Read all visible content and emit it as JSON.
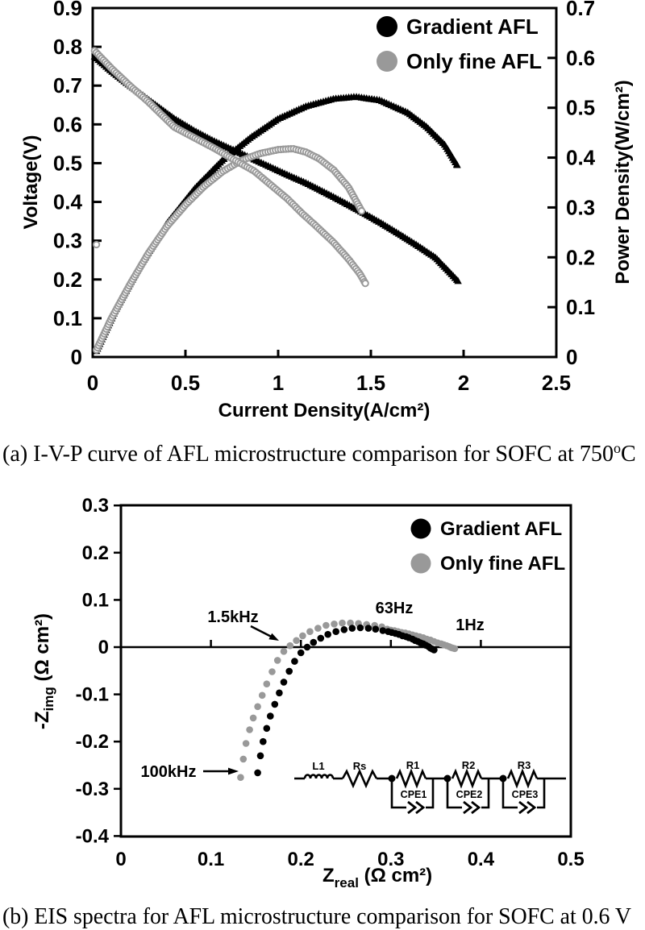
{
  "captions": {
    "a": {
      "pre": "(a) I-V-P curve of AFL microstructure comparison for SOFC at 750",
      "sup": "o",
      "post": "C"
    },
    "b": "(b) EIS spectra for AFL microstructure comparison for SOFC at 0.6 V"
  },
  "colors": {
    "black": "#000000",
    "gray": "#999999"
  },
  "chart_data": [
    {
      "id": "ivp",
      "type": "scatter",
      "title": "",
      "xlabel": "Current Density(A/cm²)",
      "ylabel": "Voltage(V)",
      "y2label": "Power Density(W/cm²)",
      "xlim": [
        0,
        2.5
      ],
      "ylim": [
        0,
        0.9
      ],
      "y2lim": [
        0,
        0.7
      ],
      "grid": false,
      "legend_position": "top-right-inside",
      "xticks": {
        "values": [
          0,
          0.5,
          1,
          1.5,
          2,
          2.5
        ],
        "labels": [
          "0",
          "0.5",
          "1",
          "1.5",
          "2",
          "2.5"
        ]
      },
      "yticks": {
        "values": [
          0,
          0.1,
          0.2,
          0.3,
          0.4,
          0.5,
          0.6,
          0.7,
          0.8,
          0.9
        ],
        "labels": [
          "0",
          "0.1",
          "0.2",
          "0.3",
          "0.4",
          "0.5",
          "0.6",
          "0.7",
          "0.8",
          "0.9"
        ]
      },
      "y2ticks": {
        "values": [
          0,
          0.1,
          0.2,
          0.3,
          0.4,
          0.5,
          0.6,
          0.7
        ],
        "labels": [
          "0",
          "0.1",
          "0.2",
          "0.3",
          "0.4",
          "0.5",
          "0.6",
          "0.7"
        ]
      },
      "legend": [
        {
          "label": "Gradient AFL",
          "color": "#000000"
        },
        {
          "label": "Only fine AFL",
          "color": "#999999"
        }
      ],
      "series": [
        {
          "name": "Gradient AFL power density",
          "axis": "y2",
          "marker": "triangle",
          "color": "#000000",
          "dense": true,
          "points": [
            [
              0.02,
              0.012
            ],
            [
              0.12,
              0.092
            ],
            [
              0.25,
              0.18
            ],
            [
              0.4,
              0.268
            ],
            [
              0.55,
              0.338
            ],
            [
              0.7,
              0.395
            ],
            [
              0.85,
              0.44
            ],
            [
              1.0,
              0.478
            ],
            [
              1.15,
              0.503
            ],
            [
              1.3,
              0.518
            ],
            [
              1.42,
              0.522
            ],
            [
              1.55,
              0.515
            ],
            [
              1.7,
              0.49
            ],
            [
              1.8,
              0.462
            ],
            [
              1.9,
              0.425
            ],
            [
              1.965,
              0.385
            ]
          ]
        },
        {
          "name": "Gradient AFL voltage",
          "axis": "y",
          "marker": "triangle",
          "color": "#000000",
          "dense": true,
          "points": [
            [
              0.01,
              0.775
            ],
            [
              0.1,
              0.737
            ],
            [
              0.2,
              0.7
            ],
            [
              0.3,
              0.664
            ],
            [
              0.44,
              0.615
            ],
            [
              0.55,
              0.583
            ],
            [
              0.65,
              0.558
            ],
            [
              0.75,
              0.536
            ],
            [
              0.85,
              0.514
            ],
            [
              0.95,
              0.492
            ],
            [
              1.05,
              0.47
            ],
            [
              1.15,
              0.449
            ],
            [
              1.25,
              0.425
            ],
            [
              1.35,
              0.4
            ],
            [
              1.45,
              0.374
            ],
            [
              1.55,
              0.347
            ],
            [
              1.65,
              0.318
            ],
            [
              1.75,
              0.288
            ],
            [
              1.85,
              0.256
            ],
            [
              1.97,
              0.196
            ]
          ]
        },
        {
          "name": "Only fine AFL power density",
          "axis": "y2",
          "marker": "open-circle",
          "color": "#999999",
          "dense": true,
          "points": [
            [
              0.02,
              0.014
            ],
            [
              0.1,
              0.077
            ],
            [
              0.2,
              0.145
            ],
            [
              0.3,
              0.208
            ],
            [
              0.4,
              0.262
            ],
            [
              0.5,
              0.305
            ],
            [
              0.6,
              0.342
            ],
            [
              0.7,
              0.372
            ],
            [
              0.8,
              0.394
            ],
            [
              0.9,
              0.408
            ],
            [
              1.0,
              0.416
            ],
            [
              1.08,
              0.418
            ],
            [
              1.15,
              0.411
            ],
            [
              1.22,
              0.398
            ],
            [
              1.3,
              0.375
            ],
            [
              1.38,
              0.34
            ],
            [
              1.45,
              0.293
            ]
          ]
        },
        {
          "name": "Only fine AFL voltage",
          "axis": "y",
          "marker": "open-circle",
          "color": "#999999",
          "dense": true,
          "points": [
            [
              0.01,
              0.79
            ],
            [
              0.1,
              0.745
            ],
            [
              0.2,
              0.7
            ],
            [
              0.3,
              0.658
            ],
            [
              0.44,
              0.593
            ],
            [
              0.55,
              0.565
            ],
            [
              0.65,
              0.54
            ],
            [
              0.75,
              0.512
            ],
            [
              0.87,
              0.48
            ],
            [
              0.95,
              0.448
            ],
            [
              1.05,
              0.408
            ],
            [
              1.13,
              0.37
            ],
            [
              1.2,
              0.34
            ],
            [
              1.3,
              0.295
            ],
            [
              1.38,
              0.252
            ],
            [
              1.44,
              0.215
            ],
            [
              1.47,
              0.19
            ]
          ]
        },
        {
          "name": "Only fine AFL outlier point",
          "axis": "y",
          "marker": "open-circle",
          "color": "#999999",
          "dense": false,
          "points": [
            [
              0.02,
              0.29
            ]
          ]
        }
      ]
    },
    {
      "id": "eis",
      "type": "scatter",
      "title": "",
      "xlabel_parts": {
        "main": "Z",
        "sub": "real",
        "rest": " (Ω cm²)"
      },
      "ylabel_parts": {
        "main": "-Z",
        "sub": "img",
        "rest": " (Ω cm²)"
      },
      "xlim": [
        0,
        0.5
      ],
      "ylim": [
        -0.4,
        0.3
      ],
      "grid": false,
      "legend_position": "top-right-inside",
      "xticks": {
        "values": [
          0,
          0.1,
          0.2,
          0.3,
          0.4,
          0.5
        ],
        "labels": [
          "0",
          "0.1",
          "0.2",
          "0.3",
          "0.4",
          "0.5"
        ]
      },
      "yticks": {
        "values": [
          0.3,
          0.2,
          0.1,
          0,
          -0.1,
          -0.2,
          -0.3,
          -0.4
        ],
        "labels": [
          "0.3",
          "0.2",
          "0.1",
          "0",
          "-0.1",
          "-0.2",
          "-0.3",
          "-0.4"
        ]
      },
      "zero_axis_ticks": [
        0.1,
        0.2,
        0.3,
        0.4
      ],
      "legend": [
        {
          "label": "Gradient AFL",
          "color": "#000000"
        },
        {
          "label": "Only fine AFL",
          "color": "#999999"
        }
      ],
      "annotations": [
        {
          "text": "1.5kHz",
          "points_to": [
            0.175,
            0.012
          ]
        },
        {
          "text": "63Hz",
          "near": [
            0.3,
            0.085
          ]
        },
        {
          "text": "1Hz",
          "near": [
            0.388,
            0.049
          ]
        },
        {
          "text": "100kHz",
          "points_to": [
            0.133,
            -0.276
          ]
        }
      ],
      "circuit": {
        "labels": [
          "L1",
          "Rs",
          "R1",
          "R2",
          "R3"
        ],
        "cpe_labels": [
          "CPE1",
          "CPE2",
          "CPE3"
        ]
      },
      "series": [
        {
          "name": "Only fine AFL",
          "marker": "circle",
          "color": "#999999",
          "dense": false,
          "points": [
            [
              0.133,
              -0.276
            ],
            [
              0.136,
              -0.237
            ],
            [
              0.139,
              -0.204
            ],
            [
              0.143,
              -0.175
            ],
            [
              0.147,
              -0.15
            ],
            [
              0.152,
              -0.126
            ],
            [
              0.157,
              -0.102
            ],
            [
              0.162,
              -0.078
            ],
            [
              0.168,
              -0.052
            ],
            [
              0.174,
              -0.028
            ],
            [
              0.181,
              -0.009
            ],
            [
              0.188,
              0.003
            ],
            [
              0.195,
              0.014
            ],
            [
              0.202,
              0.024
            ],
            [
              0.21,
              0.033
            ],
            [
              0.219,
              0.04
            ],
            [
              0.228,
              0.046
            ],
            [
              0.237,
              0.049
            ],
            [
              0.246,
              0.051
            ],
            [
              0.255,
              0.051
            ],
            [
              0.264,
              0.05
            ],
            [
              0.273,
              0.048
            ],
            [
              0.282,
              0.046
            ],
            [
              0.29,
              0.043
            ],
            [
              0.296,
              0.038
            ],
            [
              0.3,
              0.036
            ],
            [
              0.304,
              0.035
            ],
            [
              0.308,
              0.033
            ],
            [
              0.312,
              0.031
            ],
            [
              0.316,
              0.03
            ],
            [
              0.32,
              0.028
            ],
            [
              0.324,
              0.026
            ],
            [
              0.328,
              0.024
            ],
            [
              0.332,
              0.022
            ],
            [
              0.336,
              0.02
            ],
            [
              0.34,
              0.017
            ],
            [
              0.344,
              0.015
            ],
            [
              0.348,
              0.012
            ],
            [
              0.352,
              0.009
            ],
            [
              0.356,
              0.007
            ],
            [
              0.359,
              0.005
            ],
            [
              0.362,
              0.003
            ],
            [
              0.365,
              0.001
            ],
            [
              0.367,
              -0.001
            ],
            [
              0.369,
              -0.002
            ],
            [
              0.371,
              -0.003
            ]
          ]
        },
        {
          "name": "Gradient AFL",
          "marker": "circle",
          "color": "#000000",
          "dense": false,
          "points": [
            [
              0.152,
              -0.266
            ],
            [
              0.155,
              -0.23
            ],
            [
              0.158,
              -0.2
            ],
            [
              0.162,
              -0.172
            ],
            [
              0.166,
              -0.146
            ],
            [
              0.171,
              -0.121
            ],
            [
              0.176,
              -0.097
            ],
            [
              0.181,
              -0.074
            ],
            [
              0.187,
              -0.051
            ],
            [
              0.193,
              -0.03
            ],
            [
              0.2,
              -0.012
            ],
            [
              0.207,
              0.0
            ],
            [
              0.214,
              0.01
            ],
            [
              0.222,
              0.019
            ],
            [
              0.23,
              0.027
            ],
            [
              0.239,
              0.033
            ],
            [
              0.248,
              0.037
            ],
            [
              0.257,
              0.04
            ],
            [
              0.266,
              0.041
            ],
            [
              0.275,
              0.04
            ],
            [
              0.283,
              0.038
            ],
            [
              0.291,
              0.035
            ],
            [
              0.297,
              0.033
            ],
            [
              0.301,
              0.031
            ],
            [
              0.305,
              0.029
            ],
            [
              0.309,
              0.027
            ],
            [
              0.313,
              0.024
            ],
            [
              0.317,
              0.022
            ],
            [
              0.32,
              0.02
            ],
            [
              0.324,
              0.017
            ],
            [
              0.327,
              0.014
            ],
            [
              0.33,
              0.012
            ],
            [
              0.333,
              0.009
            ],
            [
              0.336,
              0.007
            ],
            [
              0.339,
              0.004
            ],
            [
              0.342,
              0.001
            ],
            [
              0.344,
              -0.002
            ],
            [
              0.346,
              -0.004
            ],
            [
              0.348,
              -0.006
            ]
          ]
        }
      ]
    }
  ]
}
